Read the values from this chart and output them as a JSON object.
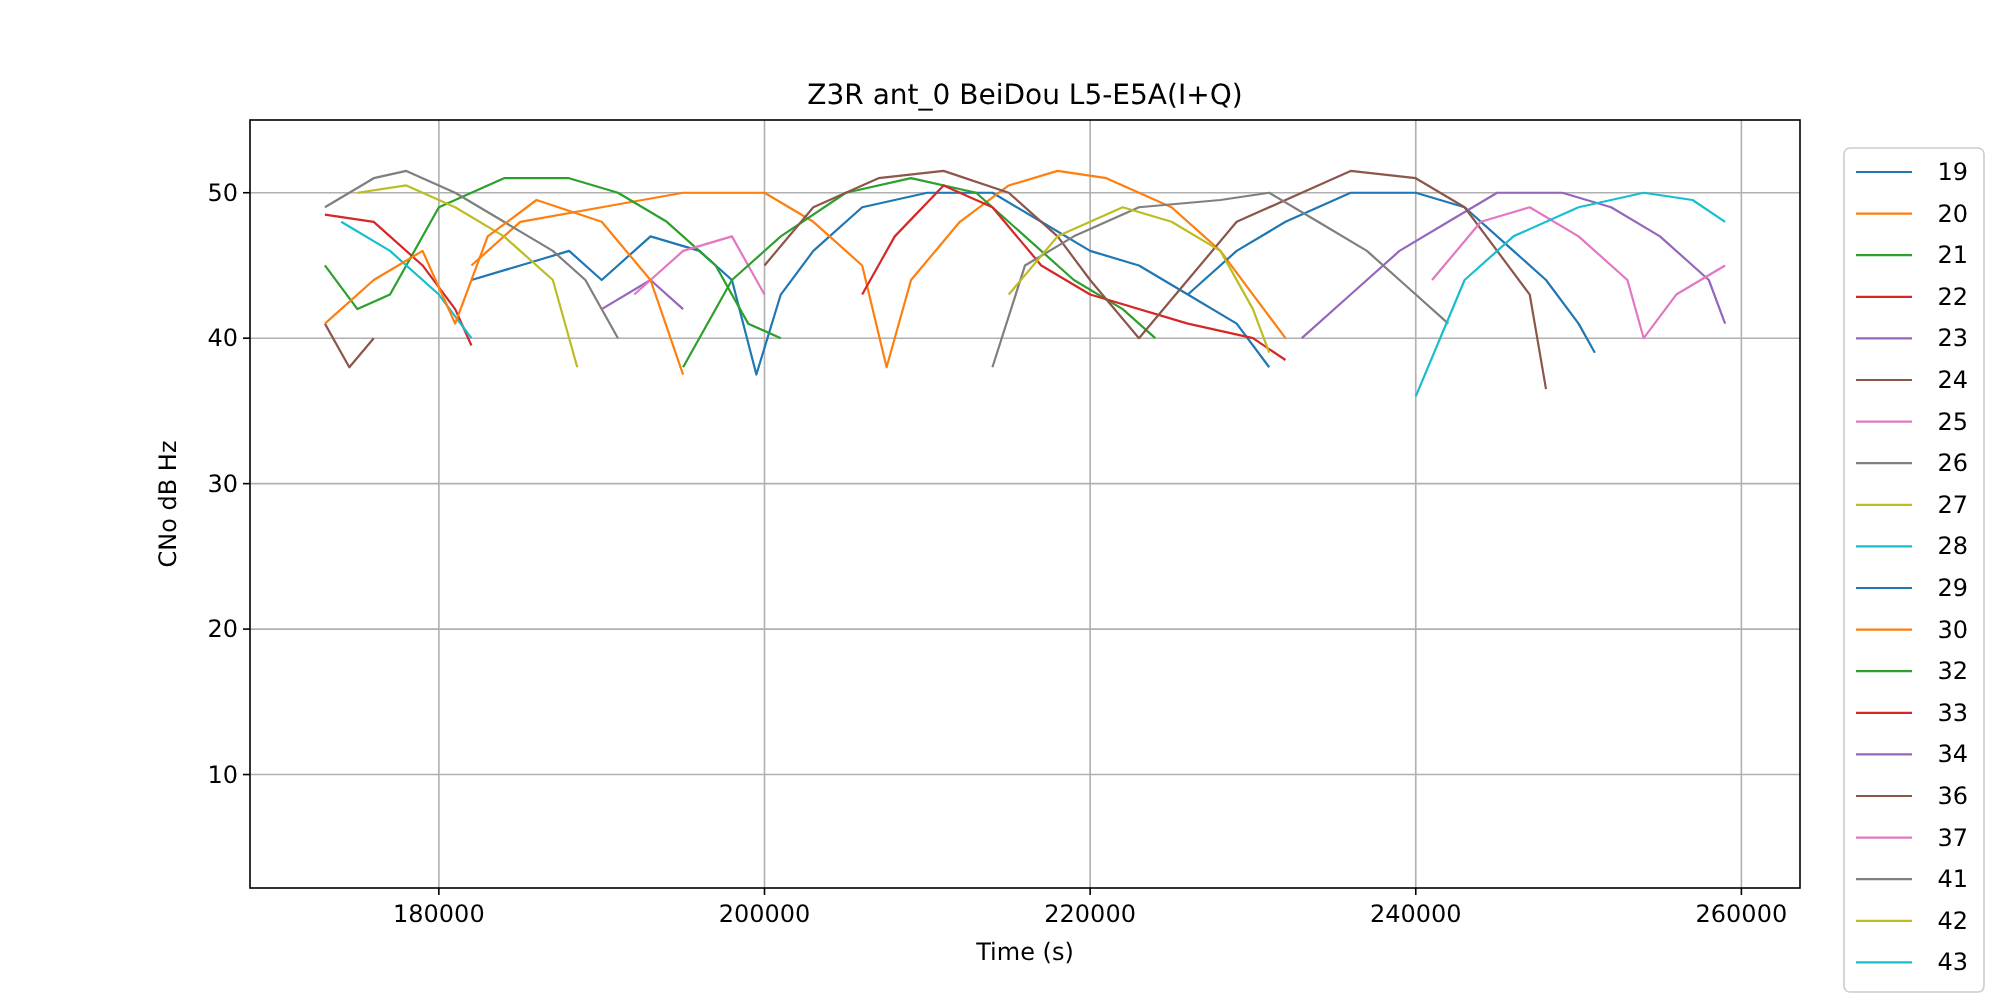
{
  "chart_data": {
    "type": "line",
    "title": "Z3R ant_0 BeiDou L5-E5A(I+Q)",
    "xlabel": "Time (s)",
    "ylabel": "CNo dB Hz",
    "xlim": [
      168400,
      263600
    ],
    "ylim": [
      2.2,
      55
    ],
    "xticks": [
      180000,
      200000,
      220000,
      240000,
      260000
    ],
    "yticks": [
      10,
      20,
      30,
      40,
      50
    ],
    "grid": true,
    "legend": "right",
    "line_style": "solid",
    "marker": "none",
    "series": [
      {
        "name": "19",
        "color": "#1f77b4",
        "x": [
          182000,
          185000,
          188000,
          190000,
          193000,
          196000,
          198000,
          199500,
          201000,
          203000,
          206000,
          210000,
          214000,
          217000,
          220000,
          223000,
          226000,
          229000,
          231000
        ],
        "values": [
          44,
          45,
          46,
          44,
          47,
          46,
          44,
          37.5,
          43,
          46,
          49,
          50,
          50,
          48,
          46,
          45,
          43,
          41,
          38
        ]
      },
      {
        "name": "20",
        "color": "#ff7f0e",
        "x": [
          182000,
          185000,
          190000,
          195000,
          200000,
          203000,
          206000,
          207500,
          209000,
          212000,
          215000,
          218000,
          221000,
          225000,
          228000,
          230000,
          232000
        ],
        "values": [
          45,
          48,
          49,
          50,
          50,
          48,
          45,
          38,
          44,
          48,
          50.5,
          51.5,
          51,
          49,
          46,
          43,
          40
        ]
      },
      {
        "name": "21",
        "color": "#2ca02c",
        "x": [
          173000,
          175000,
          177000,
          180000,
          184000,
          188000,
          191000,
          194000,
          197000,
          199000,
          201000
        ],
        "values": [
          45,
          42,
          43,
          49,
          51,
          51,
          50,
          48,
          45,
          41,
          40
        ]
      },
      {
        "name": "22",
        "color": "#d62728",
        "x": [
          173000,
          176000,
          179000,
          181000,
          182000
        ],
        "values": [
          48.5,
          48,
          45,
          42,
          39.5
        ]
      },
      {
        "name": "23",
        "color": "#9467bd",
        "x": [
          190000,
          193000,
          195000
        ],
        "values": [
          42,
          44,
          42
        ]
      },
      {
        "name": "24",
        "color": "#8c564b",
        "x": [
          173000,
          174500,
          176000
        ],
        "values": [
          41,
          38,
          40
        ]
      },
      {
        "name": "25",
        "color": "#e377c2",
        "x": [
          192000,
          195000,
          198000,
          200000
        ],
        "values": [
          43,
          46,
          47,
          43
        ]
      },
      {
        "name": "26",
        "color": "#7f7f7f",
        "x": [
          173000,
          176000,
          178000,
          181000,
          184000,
          187000,
          189000,
          191000
        ],
        "values": [
          49,
          51,
          51.5,
          50,
          48,
          46,
          44,
          40
        ]
      },
      {
        "name": "27",
        "color": "#bcbd22",
        "x": [
          175000,
          178000,
          181000,
          184000,
          187000,
          188500
        ],
        "values": [
          50,
          50.5,
          49,
          47,
          44,
          38
        ]
      },
      {
        "name": "28",
        "color": "#17becf",
        "x": [
          174000,
          177000,
          180000,
          182000
        ],
        "values": [
          48,
          46,
          43,
          40
        ]
      },
      {
        "name": "29",
        "color": "#1f77b4",
        "x": [
          226000,
          229000,
          232000,
          236000,
          240000,
          243000,
          246000,
          248000,
          250000,
          251000
        ],
        "values": [
          43,
          46,
          48,
          50,
          50,
          49,
          46,
          44,
          41,
          39
        ]
      },
      {
        "name": "30",
        "color": "#ff7f0e",
        "x": [
          173000,
          176000,
          179000,
          181000,
          183000,
          186000,
          190000,
          193000,
          195000
        ],
        "values": [
          41,
          44,
          46,
          41,
          47,
          49.5,
          48,
          44,
          37.5
        ]
      },
      {
        "name": "32",
        "color": "#2ca02c",
        "x": [
          195000,
          198000,
          201000,
          205000,
          209000,
          213000,
          216000,
          219000,
          222000,
          224000
        ],
        "values": [
          38,
          44,
          47,
          50,
          51,
          50,
          47,
          44,
          42,
          40
        ]
      },
      {
        "name": "33",
        "color": "#d62728",
        "x": [
          206000,
          208000,
          211000,
          214000,
          217000,
          220000,
          226000,
          230000,
          232000
        ],
        "values": [
          43,
          47,
          50.5,
          49,
          45,
          43,
          41,
          40,
          38.5
        ]
      },
      {
        "name": "34",
        "color": "#9467bd",
        "x": [
          233000,
          236000,
          239000,
          242000,
          245000,
          249000,
          252000,
          255000,
          258000,
          259000
        ],
        "values": [
          40,
          43,
          46,
          48,
          50,
          50,
          49,
          47,
          44,
          41
        ]
      },
      {
        "name": "36",
        "color": "#8c564b",
        "x": [
          200000,
          203000,
          207000,
          211000,
          215000,
          218000,
          220000,
          223000,
          226000,
          229000,
          233000,
          236000,
          240000,
          243000,
          245000,
          247000,
          248000
        ],
        "values": [
          45,
          49,
          51,
          51.5,
          50,
          47,
          44,
          40,
          44,
          48,
          50,
          51.5,
          51,
          49,
          46,
          43,
          36.5
        ]
      },
      {
        "name": "37",
        "color": "#e377c2",
        "x": [
          241000,
          244000,
          247000,
          250000,
          253000,
          254000,
          256000,
          259000
        ],
        "values": [
          44,
          48,
          49,
          47,
          44,
          40,
          43,
          45
        ]
      },
      {
        "name": "41",
        "color": "#7f7f7f",
        "x": [
          214000,
          216000,
          219000,
          223000,
          228000,
          231000,
          234000,
          237000,
          240000,
          242000
        ],
        "values": [
          38,
          45,
          47,
          49,
          49.5,
          50,
          48,
          46,
          43,
          41
        ]
      },
      {
        "name": "42",
        "color": "#bcbd22",
        "x": [
          215000,
          218000,
          222000,
          225000,
          228000,
          230000,
          231000
        ],
        "values": [
          43,
          47,
          49,
          48,
          46,
          42,
          39
        ]
      },
      {
        "name": "43",
        "color": "#17becf",
        "x": [
          240000,
          243000,
          246000,
          250000,
          254000,
          257000,
          259000
        ],
        "values": [
          36,
          44,
          47,
          49,
          50,
          49.5,
          48
        ]
      }
    ]
  }
}
